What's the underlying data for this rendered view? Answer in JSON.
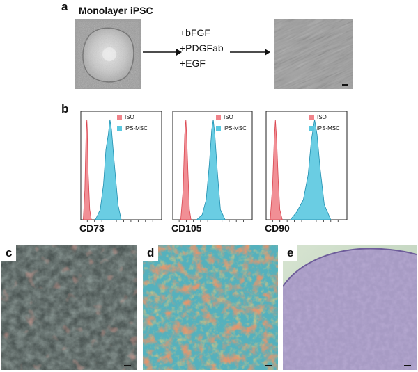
{
  "panel_a": {
    "letter": "a",
    "title": "Monolayer iPSC",
    "factors": [
      "+bFGF",
      "+PDGFab",
      "+EGF"
    ]
  },
  "panel_b": {
    "letter": "b",
    "legend": [
      "ISO",
      "iPS-MSC"
    ],
    "markers": [
      "CD73",
      "CD105",
      "CD90"
    ],
    "colors": {
      "iso": "#f0838a",
      "msc": "#5ac8e0",
      "iso_edge": "#d9454f",
      "msc_edge": "#1f8fb0"
    }
  },
  "panel_c": {
    "letter": "c"
  },
  "panel_d": {
    "letter": "d"
  },
  "panel_e": {
    "letter": "e"
  },
  "chart_data": [
    {
      "type": "area",
      "xlabel": "CD73",
      "series": [
        {
          "name": "ISO",
          "x": [
            0.03,
            0.05,
            0.065,
            0.075,
            0.08,
            0.09,
            0.11,
            0.13
          ],
          "values": [
            0,
            0.3,
            0.85,
            1.0,
            0.9,
            0.5,
            0.1,
            0
          ]
        },
        {
          "name": "iPS-MSC",
          "x": [
            0.18,
            0.24,
            0.28,
            0.31,
            0.34,
            0.36,
            0.38,
            0.41,
            0.46,
            0.5
          ],
          "values": [
            0,
            0.1,
            0.35,
            0.7,
            0.85,
            1.0,
            0.9,
            0.6,
            0.15,
            0
          ]
        }
      ]
    },
    {
      "type": "area",
      "xlabel": "CD105",
      "series": [
        {
          "name": "ISO",
          "x": [
            0.1,
            0.13,
            0.15,
            0.165,
            0.175,
            0.19,
            0.21,
            0.23
          ],
          "values": [
            0,
            0.3,
            0.85,
            1.0,
            0.85,
            0.5,
            0.1,
            0
          ]
        },
        {
          "name": "iPS-MSC",
          "x": [
            0.3,
            0.37,
            0.42,
            0.46,
            0.49,
            0.51,
            0.53,
            0.56,
            0.6,
            0.66
          ],
          "values": [
            0,
            0.05,
            0.2,
            0.55,
            0.9,
            1.0,
            0.85,
            0.5,
            0.1,
            0
          ]
        }
      ]
    },
    {
      "type": "area",
      "xlabel": "CD90",
      "series": [
        {
          "name": "ISO",
          "x": [
            0.05,
            0.08,
            0.1,
            0.115,
            0.13,
            0.15,
            0.17,
            0.2
          ],
          "values": [
            0,
            0.35,
            0.8,
            1.0,
            0.8,
            0.4,
            0.1,
            0
          ]
        },
        {
          "name": "iPS-MSC",
          "x": [
            0.3,
            0.38,
            0.46,
            0.52,
            0.56,
            0.6,
            0.63,
            0.67,
            0.72,
            0.8
          ],
          "values": [
            0,
            0.08,
            0.2,
            0.45,
            0.8,
            1.0,
            0.85,
            0.5,
            0.15,
            0
          ]
        }
      ]
    }
  ]
}
